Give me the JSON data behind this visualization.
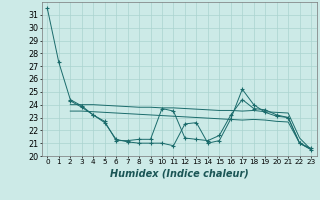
{
  "background_color": "#cceae7",
  "grid_color": "#aad4d0",
  "line_color": "#1a6b6b",
  "marker_color": "#1a6b6b",
  "xlabel": "Humidex (Indice chaleur)",
  "xlabel_fontsize": 7,
  "tick_fontsize": 6,
  "ylim": [
    20,
    32
  ],
  "xlim": [
    -0.5,
    23.5
  ],
  "yticks": [
    20,
    21,
    22,
    23,
    24,
    25,
    26,
    27,
    28,
    29,
    30,
    31
  ],
  "xticks": [
    0,
    1,
    2,
    3,
    4,
    5,
    6,
    7,
    8,
    9,
    10,
    11,
    12,
    13,
    14,
    15,
    16,
    17,
    18,
    19,
    20,
    21,
    22,
    23
  ],
  "series1_x": [
    0,
    1,
    2,
    3,
    4,
    5,
    6,
    7,
    8,
    9,
    10,
    11,
    12,
    13,
    14,
    15,
    16,
    17,
    18,
    19,
    20,
    21,
    22,
    23
  ],
  "series1_y": [
    31.5,
    27.3,
    24.4,
    23.9,
    23.2,
    22.6,
    21.3,
    21.1,
    21.0,
    21.0,
    21.0,
    20.8,
    22.5,
    22.6,
    21.0,
    21.2,
    22.9,
    25.2,
    24.0,
    23.4,
    23.1,
    23.0,
    21.0,
    20.5
  ],
  "series2_x": [
    2,
    3,
    4,
    5,
    6,
    7,
    8,
    9,
    10,
    11,
    12,
    13,
    14,
    15,
    16,
    17,
    18,
    19,
    20,
    21,
    22,
    23
  ],
  "series2_y": [
    24.3,
    23.8,
    23.2,
    22.7,
    21.2,
    21.2,
    21.3,
    21.3,
    23.7,
    23.5,
    21.4,
    21.3,
    21.2,
    21.6,
    23.2,
    24.4,
    23.7,
    23.6,
    23.2,
    23.0,
    21.0,
    20.6
  ],
  "series3_x": [
    2,
    3,
    4,
    5,
    6,
    7,
    8,
    9,
    10,
    11,
    12,
    13,
    14,
    15,
    16,
    17,
    18,
    19,
    20,
    21,
    22,
    23
  ],
  "series3_y": [
    24.0,
    24.0,
    24.0,
    23.95,
    23.9,
    23.85,
    23.8,
    23.8,
    23.75,
    23.75,
    23.7,
    23.65,
    23.6,
    23.55,
    23.55,
    23.5,
    23.55,
    23.45,
    23.4,
    23.35,
    21.4,
    20.5
  ],
  "series4_x": [
    2,
    3,
    4,
    5,
    6,
    7,
    8,
    9,
    10,
    11,
    12,
    13,
    14,
    15,
    16,
    17,
    18,
    19,
    20,
    21,
    22,
    23
  ],
  "series4_y": [
    23.5,
    23.5,
    23.45,
    23.4,
    23.35,
    23.3,
    23.25,
    23.2,
    23.15,
    23.1,
    23.05,
    23.0,
    22.95,
    22.9,
    22.85,
    22.8,
    22.85,
    22.8,
    22.7,
    22.65,
    21.0,
    20.5
  ]
}
